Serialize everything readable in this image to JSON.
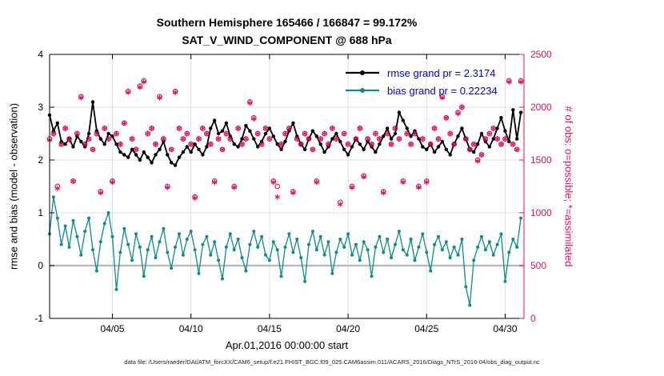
{
  "colors": {
    "obs": "#e0115f",
    "rmse": "#000000",
    "bias": "#0e8b8b",
    "legend_text": "#0000dd",
    "grid": "#d9d9d9",
    "zero_line": "#bbbbbb"
  },
  "footer": {
    "text": "data file: /Users/raeder/DAI/ATM_forcXX/CAM6_setup/f.e21.FHIST_BGC.f09_025.CAM6assim.011/ACARS_2016/Diags_NTrS_2016-04/obs_diag_output.nc"
  },
  "chart_data": {
    "type": "line",
    "title": "Southern Hemisphere 165466 / 166847 = 99.172%",
    "subtitle": "SAT_V_WIND_COMPONENT @ 688 hPa",
    "xlabel": "Apr.01,2016 00:00:00 start",
    "ylabel_left": "rmse and bias (model - observation)",
    "ylabel_right": "# of obs: o=possible; *=assimilated",
    "ylim_left": [
      -1,
      4
    ],
    "ylim_right": [
      0,
      2500
    ],
    "yticks_left": [
      -1,
      0,
      1,
      2,
      3,
      4
    ],
    "yticks_right": [
      0,
      500,
      1000,
      1500,
      2000,
      2500
    ],
    "xlim_days": [
      0,
      30.2
    ],
    "x_step_days": 0.25,
    "xticks": [
      {
        "day": 4,
        "label": "04/05"
      },
      {
        "day": 9,
        "label": "04/10"
      },
      {
        "day": 14,
        "label": "04/15"
      },
      {
        "day": 19,
        "label": "04/20"
      },
      {
        "day": 24,
        "label": "04/25"
      },
      {
        "day": 29,
        "label": "04/30"
      }
    ],
    "stats": {
      "rmse_grand_pr": 2.3174,
      "bias_grand_pr": 0.22234,
      "possible_total": 166847,
      "assimilated_total": 165466,
      "percent_assimilated": "99.172%"
    },
    "legend": [
      {
        "label": "rmse grand pr = 2.3174"
      },
      {
        "label": "bias grand pr = 0.22234"
      }
    ],
    "series": [
      {
        "name": "rmse",
        "axis": "left",
        "marker": "dot",
        "color": "#000000",
        "values": [
          2.85,
          2.55,
          2.7,
          2.35,
          2.3,
          2.4,
          2.25,
          2.45,
          2.35,
          2.25,
          2.5,
          3.1,
          2.55,
          2.4,
          2.3,
          2.5,
          2.45,
          2.3,
          2.15,
          2.1,
          2.05,
          2.2,
          2.1,
          2.0,
          2.15,
          2.05,
          1.95,
          2.1,
          2.2,
          2.35,
          2.1,
          1.95,
          1.9,
          2.05,
          2.15,
          2.25,
          2.15,
          2.3,
          2.2,
          2.1,
          2.25,
          2.6,
          2.75,
          2.5,
          2.55,
          2.7,
          2.45,
          2.3,
          2.25,
          2.4,
          2.65,
          2.55,
          2.4,
          2.25,
          2.35,
          2.5,
          2.6,
          2.45,
          2.3,
          2.2,
          2.35,
          2.55,
          2.7,
          2.45,
          2.3,
          2.2,
          2.4,
          2.55,
          2.45,
          2.3,
          2.15,
          2.25,
          2.4,
          2.5,
          2.35,
          2.2,
          2.1,
          2.25,
          2.4,
          2.3,
          2.2,
          2.35,
          2.25,
          2.15,
          2.3,
          2.45,
          2.6,
          2.4,
          2.5,
          2.9,
          2.75,
          2.6,
          2.45,
          2.55,
          2.4,
          2.25,
          2.2,
          2.3,
          2.15,
          2.25,
          2.35,
          2.2,
          2.1,
          2.3,
          2.45,
          2.6,
          2.4,
          2.2,
          2.15,
          2.3,
          2.5,
          2.35,
          2.25,
          2.4,
          2.6,
          2.8,
          2.55,
          2.35,
          2.95,
          2.4,
          2.9
        ]
      },
      {
        "name": "bias",
        "axis": "left",
        "marker": "dot",
        "color": "#0e8b8b",
        "values": [
          0.6,
          1.3,
          0.9,
          0.4,
          0.75,
          0.35,
          0.85,
          0.55,
          0.2,
          0.65,
          0.9,
          0.3,
          -0.1,
          0.45,
          0.8,
          1.0,
          0.55,
          -0.45,
          0.25,
          0.7,
          0.4,
          0.1,
          0.6,
          0.35,
          -0.2,
          0.3,
          0.55,
          0.15,
          0.45,
          0.7,
          0.25,
          -0.05,
          0.35,
          0.6,
          0.2,
          0.5,
          0.65,
          0.3,
          -0.15,
          0.4,
          0.55,
          0.2,
          0.45,
          0.1,
          -0.25,
          0.35,
          0.6,
          0.3,
          0.5,
          0.15,
          -0.1,
          0.4,
          0.65,
          0.35,
          0.55,
          0.2,
          0.1,
          0.45,
          0.3,
          -0.2,
          0.35,
          0.6,
          0.25,
          0.5,
          0.15,
          -0.3,
          0.4,
          0.65,
          0.3,
          0.55,
          0.2,
          0.45,
          -0.15,
          0.25,
          0.5,
          0.35,
          0.6,
          0.2,
          0.4,
          0.1,
          0.45,
          0.3,
          -0.2,
          0.35,
          0.55,
          0.25,
          0.5,
          0.15,
          0.4,
          0.65,
          0.3,
          0.2,
          0.5,
          0.1,
          0.35,
          0.6,
          0.25,
          -0.1,
          0.4,
          0.55,
          0.3,
          0.45,
          0.15,
          0.35,
          0.2,
          0.5,
          -0.4,
          -0.75,
          0.1,
          0.35,
          0.55,
          0.3,
          0.45,
          0.2,
          0.4,
          0.6,
          -0.3,
          0.25,
          0.5,
          0.35,
          0.9
        ]
      },
      {
        "name": "possible",
        "axis": "right",
        "marker": "o",
        "color": "#e0115f",
        "values": [
          1700,
          1750,
          1250,
          1650,
          1800,
          1700,
          1300,
          1750,
          2100,
          1650,
          1700,
          1600,
          1750,
          1200,
          1800,
          1700,
          1300,
          1750,
          1650,
          1850,
          2150,
          1700,
          1600,
          2200,
          2250,
          1750,
          1800,
          1650,
          2100,
          1700,
          1250,
          1600,
          2150,
          1800,
          1700,
          1750,
          1650,
          1150,
          1700,
          1800,
          1750,
          1650,
          1300,
          1700,
          1600,
          1750,
          1700,
          1250,
          1800,
          1650,
          1700,
          2050,
          1900,
          1750,
          1650,
          1800,
          1700,
          1300,
          1250,
          1650,
          1750,
          1800,
          1200,
          1700,
          1650,
          1750,
          1700,
          1600,
          1300,
          1700,
          1750,
          1650,
          1800,
          1700,
          1100,
          1750,
          1650,
          1250,
          1700,
          1800,
          1350,
          1700,
          1650,
          1750,
          1700,
          1200,
          1750,
          1650,
          1800,
          1700,
          1300,
          1750,
          1650,
          1750,
          1250,
          1700,
          1300,
          1650,
          1800,
          1700,
          2100,
          1900,
          1750,
          1650,
          1950,
          2000,
          1700,
          1600,
          1650,
          1500,
          1550,
          1700,
          1750,
          1800,
          1700,
          1650,
          1700,
          2250,
          1650,
          1600,
          2250
        ]
      },
      {
        "name": "assimilated",
        "axis": "right",
        "marker": "*",
        "color": "#e0115f",
        "values": [
          1690,
          1750,
          1230,
          1650,
          1800,
          1690,
          1300,
          1750,
          2090,
          1650,
          1700,
          1600,
          1750,
          1190,
          1800,
          1700,
          1290,
          1750,
          1650,
          1850,
          2140,
          1700,
          1600,
          2190,
          2240,
          1750,
          1800,
          1650,
          2090,
          1700,
          1240,
          1600,
          2140,
          1800,
          1700,
          1750,
          1650,
          1140,
          1700,
          1800,
          1750,
          1650,
          1290,
          1700,
          1600,
          1750,
          1700,
          1240,
          1800,
          1650,
          1700,
          2040,
          1890,
          1750,
          1650,
          1800,
          1700,
          1290,
          1150,
          1650,
          1750,
          1800,
          1190,
          1700,
          1650,
          1750,
          1700,
          1600,
          1290,
          1700,
          1750,
          1650,
          1800,
          1700,
          1080,
          1750,
          1650,
          1240,
          1700,
          1800,
          1340,
          1700,
          1650,
          1750,
          1700,
          1190,
          1750,
          1650,
          1800,
          1700,
          1290,
          1750,
          1650,
          1750,
          1240,
          1700,
          1290,
          1650,
          1800,
          1700,
          2090,
          1900,
          1750,
          1650,
          1940,
          2000,
          1700,
          1600,
          1650,
          1490,
          1550,
          1700,
          1750,
          1800,
          1700,
          1650,
          1700,
          2240,
          1650,
          1600,
          2240
        ]
      }
    ]
  }
}
